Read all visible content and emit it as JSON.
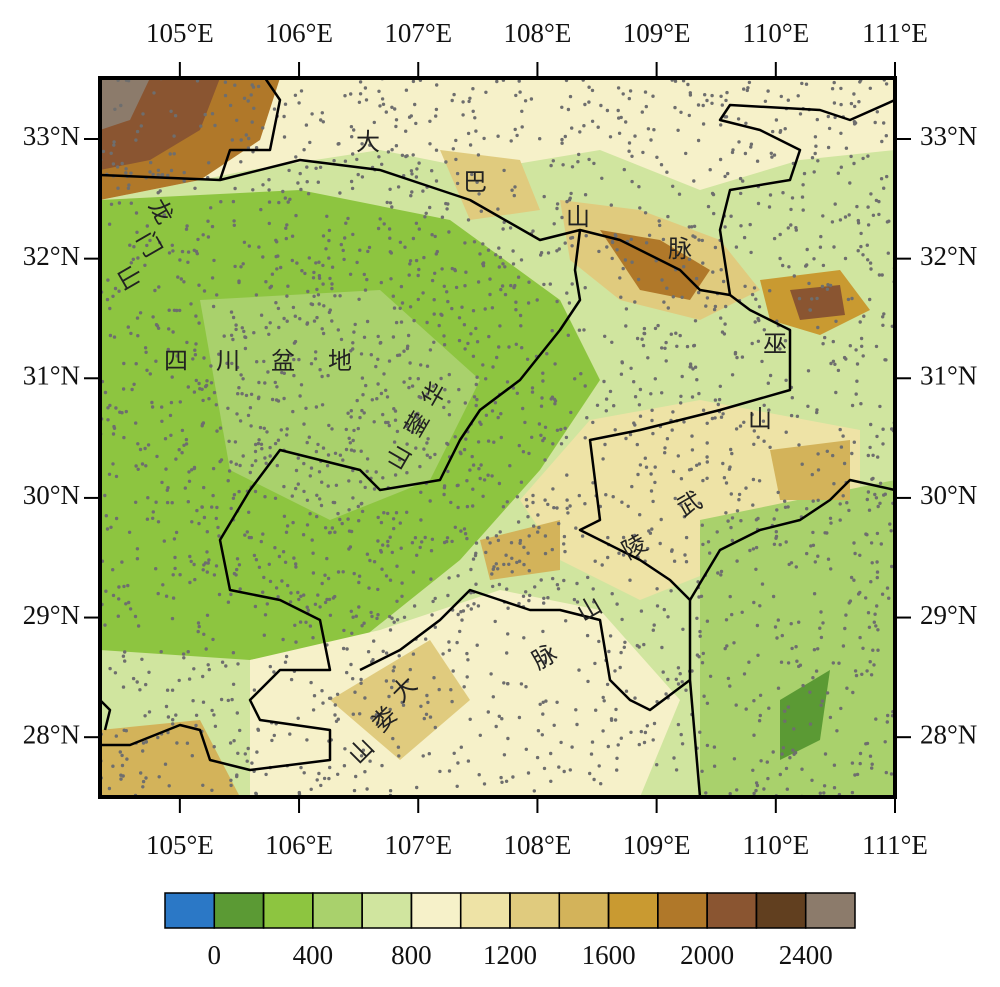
{
  "map": {
    "xlim": [
      104.33,
      111
    ],
    "ylim": [
      27.5,
      33.51
    ],
    "xticks": [
      {
        "value": 105,
        "label": "105°E"
      },
      {
        "value": 106,
        "label": "106°E"
      },
      {
        "value": 107,
        "label": "107°E"
      },
      {
        "value": 108,
        "label": "108°E"
      },
      {
        "value": 109,
        "label": "109°E"
      },
      {
        "value": 110,
        "label": "110°E"
      },
      {
        "value": 111,
        "label": "111°E"
      }
    ],
    "yticks": [
      {
        "value": 28,
        "label": "28°N"
      },
      {
        "value": 29,
        "label": "29°N"
      },
      {
        "value": 30,
        "label": "30°N"
      },
      {
        "value": 31,
        "label": "31°N"
      },
      {
        "value": 32,
        "label": "32°N"
      },
      {
        "value": 33,
        "label": "33°N"
      }
    ],
    "place_labels": [
      [
        "大",
        "巴",
        "山",
        "脉"
      ],
      [
        "龙",
        "门",
        "山"
      ],
      [
        "四",
        "川",
        "盆",
        "地"
      ],
      [
        "华",
        "蓥",
        "山"
      ],
      [
        "巫",
        "山"
      ],
      [
        "武",
        "陵",
        "山",
        "脉"
      ],
      [
        "大",
        "娄",
        "山"
      ]
    ],
    "colorbar": {
      "colors": [
        "#2b78c6",
        "#5b9a34",
        "#8dc540",
        "#a9d16c",
        "#d0e59f",
        "#f6f1c9",
        "#eee3a6",
        "#e0cb7e",
        "#d3b35a",
        "#c99a31",
        "#b07829",
        "#8a5531",
        "#613f1f",
        "#8c7b6b"
      ],
      "ticks": [
        0,
        400,
        800,
        1200,
        1600,
        2000,
        2400
      ],
      "levels": [
        0,
        200,
        400,
        600,
        800,
        1000,
        1200,
        1400,
        1600,
        1800,
        2000,
        2200,
        2400
      ]
    }
  }
}
